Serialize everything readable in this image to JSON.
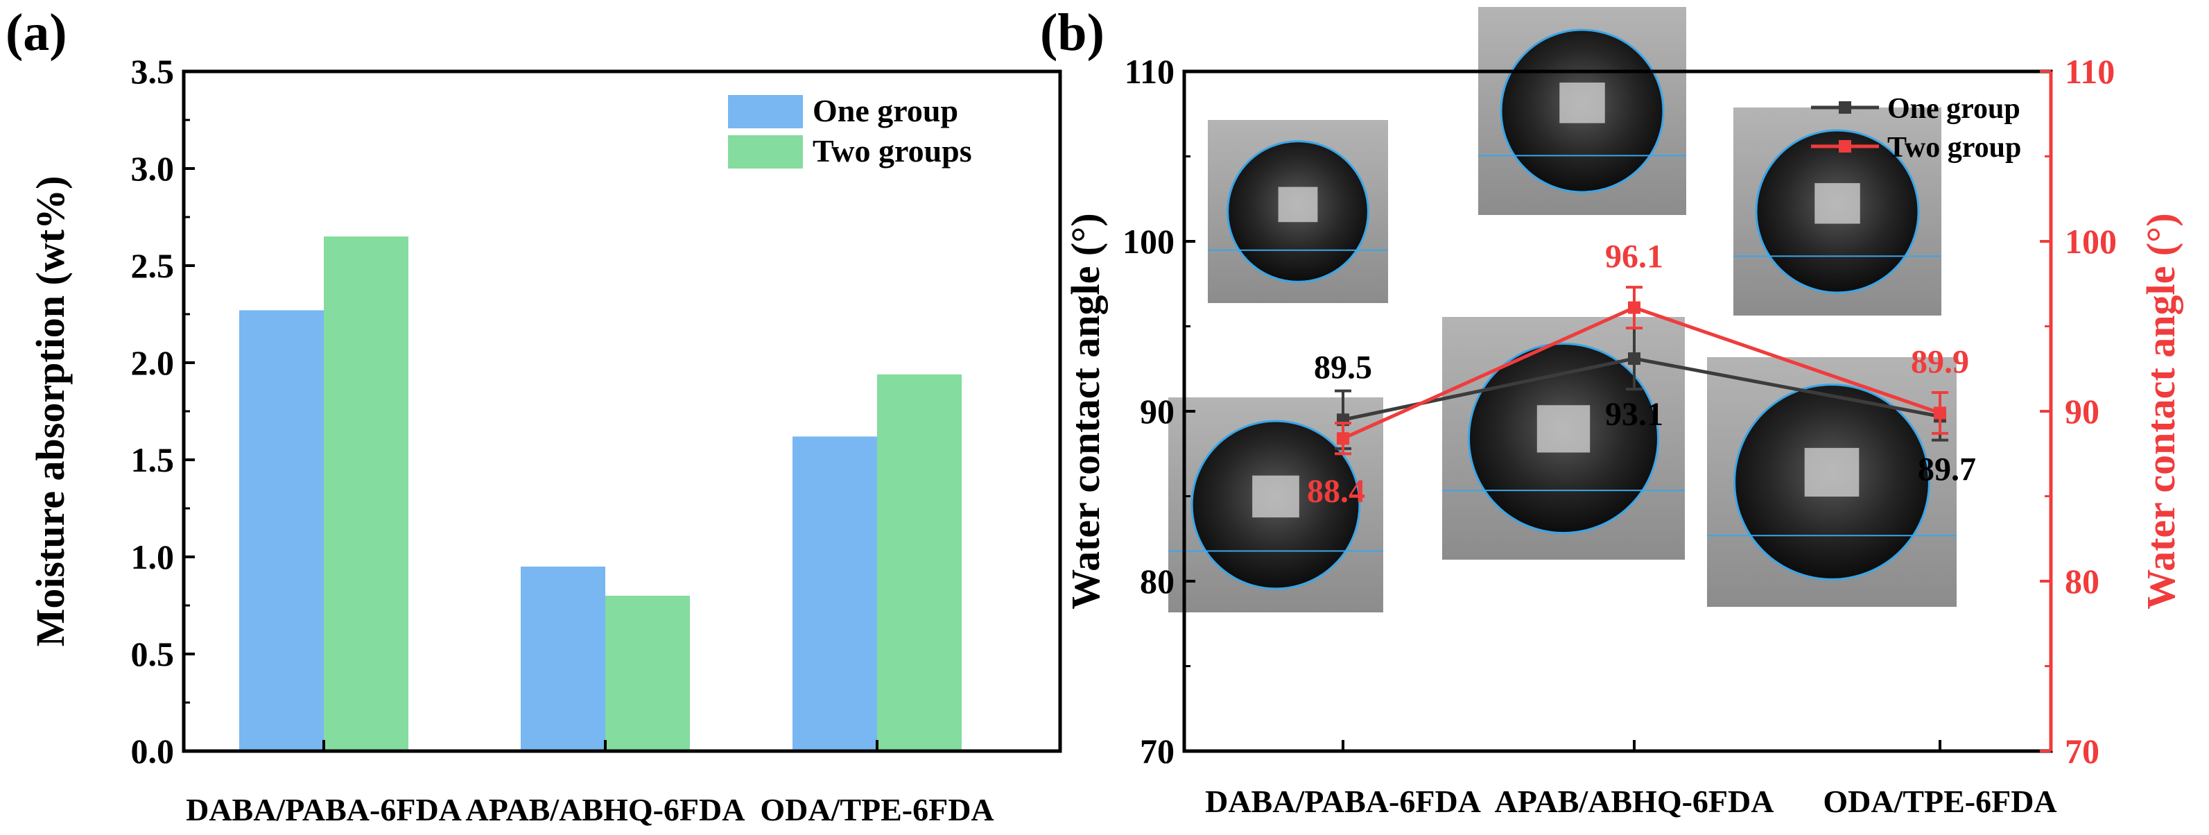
{
  "colors": {
    "one_group_bar": "#78b7f2",
    "two_groups_bar": "#84dc9e",
    "one_group_line": "#3c3c3c",
    "two_group_line": "#f03c3c",
    "right_axis": "#f03c3c",
    "axis": "#000000"
  },
  "chart_data": [
    {
      "panel": "(a)",
      "type": "bar",
      "title": "",
      "xlabel": "",
      "ylabel": "Moisture absorption (wt%)",
      "ylim": [
        0.0,
        3.5
      ],
      "yticks": [
        "0.0",
        "0.5",
        "1.0",
        "1.5",
        "2.0",
        "2.5",
        "3.0",
        "3.5"
      ],
      "categories": [
        "DABA/PABA-6FDA",
        "APAB/ABHQ-6FDA",
        "ODA/TPE-6FDA"
      ],
      "series": [
        {
          "name": "One group",
          "values": [
            2.27,
            0.95,
            1.62
          ]
        },
        {
          "name": "Two groups",
          "values": [
            2.65,
            0.8,
            1.94
          ]
        }
      ],
      "legend": "top-right"
    },
    {
      "panel": "(b)",
      "type": "line",
      "title": "",
      "xlabel": "",
      "ylabel_left": "Water contact angle (°)",
      "ylabel_right": "Water contact angle (°)",
      "ylim": [
        70,
        110
      ],
      "yticks": [
        "70",
        "80",
        "90",
        "100",
        "110"
      ],
      "categories": [
        "DABA/PABA-6FDA",
        "APAB/ABHQ-6FDA",
        "ODA/TPE-6FDA"
      ],
      "series": [
        {
          "name": "One group",
          "values": [
            89.5,
            93.1,
            89.7
          ],
          "errors": [
            1.7,
            1.8,
            1.4
          ],
          "labels": [
            "89.5",
            "93.1",
            "89.7"
          ]
        },
        {
          "name": "Two group",
          "values": [
            88.4,
            96.1,
            89.9
          ],
          "errors": [
            0.9,
            1.2,
            1.2
          ],
          "labels": [
            "88.4",
            "96.1",
            "89.9"
          ]
        }
      ],
      "legend": "top-right",
      "insets": "droplet photographs above and below each data point"
    }
  ]
}
